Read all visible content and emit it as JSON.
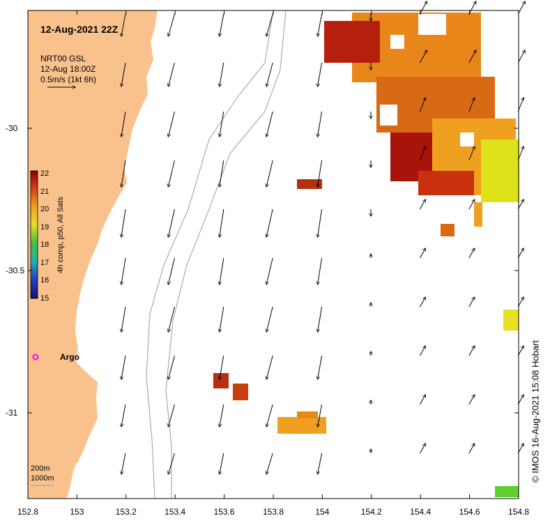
{
  "map": {
    "title": "12-Aug-2021 22Z",
    "current_product": "NRT00 GSL",
    "current_time": "12-Aug 18:00Z",
    "arrow_scale_label": "0.5m/s (1kt 6h)",
    "colorbar_title": "4h comp, p50, All Sats",
    "colorbar_ticks": [
      "22",
      "21",
      "20",
      "19",
      "18",
      "17",
      "16",
      "15"
    ],
    "argo_label": "Argo",
    "contour_labels": [
      "200m",
      "1000m"
    ],
    "credit": "© IMOS 16-Aug-2021 15:08 Hobart",
    "x_ticks": [
      "152.8",
      "153",
      "153.2",
      "153.4",
      "153.6",
      "153.8",
      "154",
      "154.2",
      "154.4",
      "154.6",
      "154.8"
    ],
    "y_ticks": [
      "-30",
      "-30.5",
      "-31"
    ],
    "colors": {
      "land": "#f9c28d",
      "warm": "#b5200e",
      "mid": "#e8861a",
      "cool": "#d9e81a",
      "argo": "#ff00ff"
    }
  }
}
